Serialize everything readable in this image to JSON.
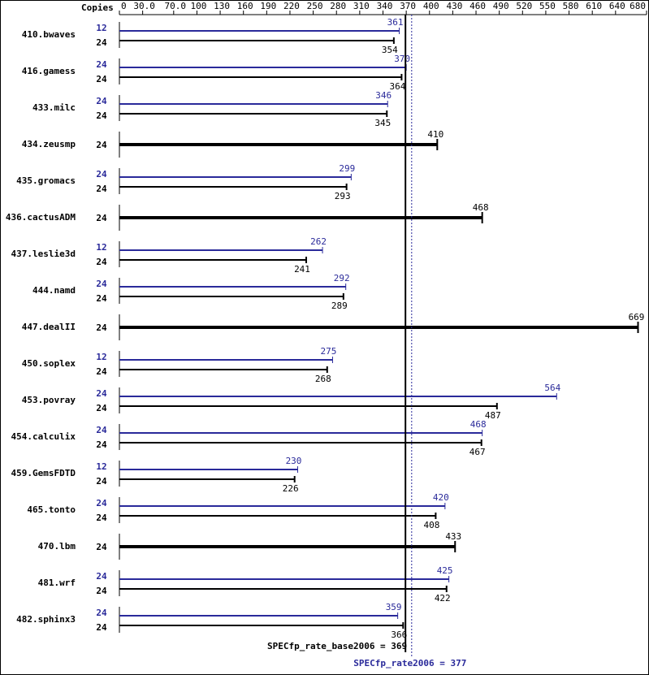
{
  "chart_data": {
    "type": "spec-rate",
    "axis_title": "Copies",
    "xlim": [
      0,
      680
    ],
    "xticks": [
      0,
      {
        "value": 30,
        "label": "30.0"
      },
      {
        "value": 70,
        "label": "70.0"
      },
      100,
      130,
      160,
      190,
      220,
      250,
      280,
      310,
      340,
      370,
      400,
      430,
      460,
      490,
      520,
      550,
      580,
      610,
      640,
      680
    ],
    "peak_color": "#2a2a9a",
    "base_color": "#000000",
    "benchmarks": [
      {
        "name": "410.bwaves",
        "peak_copies": 12,
        "peak": 361,
        "base_copies": 24,
        "base": 354
      },
      {
        "name": "416.gamess",
        "peak_copies": 24,
        "peak": 370,
        "base_copies": 24,
        "base": 364
      },
      {
        "name": "433.milc",
        "peak_copies": 24,
        "peak": 346,
        "base_copies": 24,
        "base": 345
      },
      {
        "name": "434.zeusmp",
        "base_copies": 24,
        "base": 410
      },
      {
        "name": "435.gromacs",
        "peak_copies": 24,
        "peak": 299,
        "base_copies": 24,
        "base": 293
      },
      {
        "name": "436.cactusADM",
        "base_copies": 24,
        "base": 468
      },
      {
        "name": "437.leslie3d",
        "peak_copies": 12,
        "peak": 262,
        "base_copies": 24,
        "base": 241
      },
      {
        "name": "444.namd",
        "peak_copies": 24,
        "peak": 292,
        "base_copies": 24,
        "base": 289
      },
      {
        "name": "447.dealII",
        "base_copies": 24,
        "base": 669
      },
      {
        "name": "450.soplex",
        "peak_copies": 12,
        "peak": 275,
        "base_copies": 24,
        "base": 268
      },
      {
        "name": "453.povray",
        "peak_copies": 24,
        "peak": 564,
        "base_copies": 24,
        "base": 487
      },
      {
        "name": "454.calculix",
        "peak_copies": 24,
        "peak": 468,
        "base_copies": 24,
        "base": 467
      },
      {
        "name": "459.GemsFDTD",
        "peak_copies": 12,
        "peak": 230,
        "base_copies": 24,
        "base": 226
      },
      {
        "name": "465.tonto",
        "peak_copies": 24,
        "peak": 420,
        "base_copies": 24,
        "base": 408
      },
      {
        "name": "470.lbm",
        "base_copies": 24,
        "base": 433
      },
      {
        "name": "481.wrf",
        "peak_copies": 24,
        "peak": 425,
        "base_copies": 24,
        "base": 422
      },
      {
        "name": "482.sphinx3",
        "peak_copies": 24,
        "peak": 359,
        "base_copies": 24,
        "base": 366
      }
    ],
    "base_metric": {
      "label": "SPECfp_rate_base2006 = 369",
      "value": 369
    },
    "peak_metric": {
      "label": "SPECfp_rate2006 = 377",
      "value": 377
    }
  }
}
